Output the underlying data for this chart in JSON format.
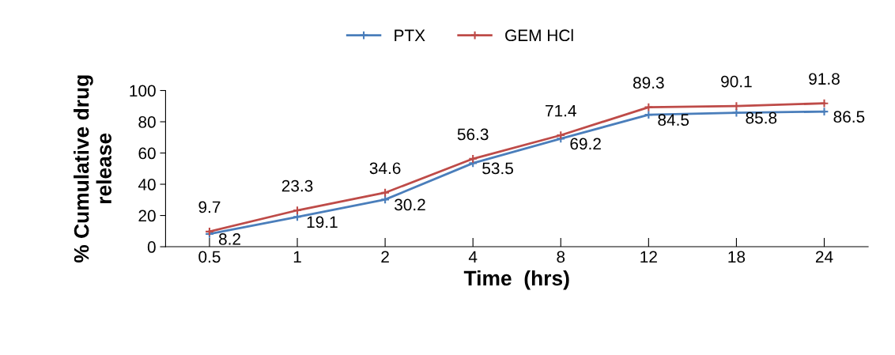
{
  "chart_data": {
    "type": "line",
    "xlabel": "Time  (hrs)",
    "ylabel": "% Cumulative drug\nrelease",
    "categories": [
      "0.5",
      "1",
      "2",
      "4",
      "8",
      "12",
      "18",
      "24"
    ],
    "series": [
      {
        "name": "PTX",
        "color": "#4a7ebb",
        "values": [
          8.2,
          19.1,
          30.2,
          53.5,
          69.2,
          84.5,
          85.8,
          86.5
        ]
      },
      {
        "name": "GEM HCl",
        "color": "#be4b48",
        "values": [
          9.7,
          23.3,
          34.6,
          56.3,
          71.4,
          89.3,
          90.1,
          91.8
        ]
      }
    ],
    "ylim": [
      0,
      100
    ],
    "yticks": [
      0,
      20,
      40,
      60,
      80,
      100
    ],
    "data_labels": true,
    "legend": "top",
    "marker": "cross",
    "line_style": "solid",
    "grid": false
  }
}
